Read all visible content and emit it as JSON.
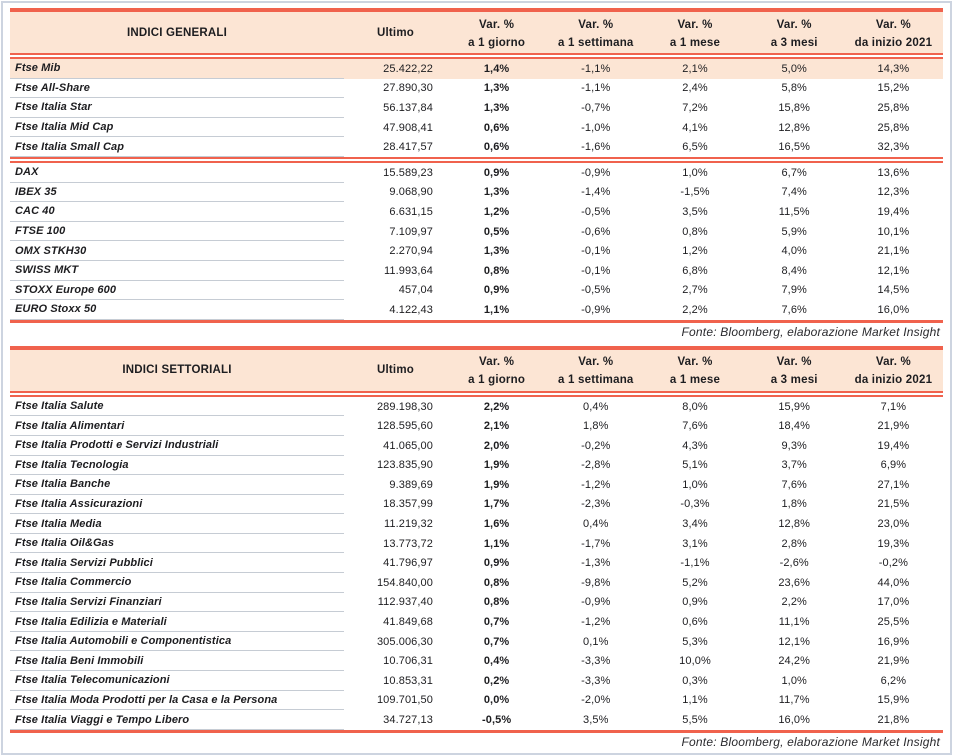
{
  "colors": {
    "accent": "#f0624d",
    "header_bg": "#fce5d4",
    "highlight_bg": "#fce5d4",
    "outer_border": "#cdd4e0",
    "row_line": "#c6ccd4",
    "text": "#1d1d20"
  },
  "columns": {
    "ultimo": "Ultimo",
    "var_label": "Var. %",
    "periods": [
      "a 1 giorno",
      "a 1 settimana",
      "a 1 mese",
      "a 3 mesi",
      "da inizio 2021"
    ]
  },
  "tables": [
    {
      "title": "INDICI GENERALI",
      "footer": "Fonte: Bloomberg, elaborazione Market Insight",
      "rows": [
        {
          "name": "Ftse Mib",
          "values": [
            "25.422,22",
            "1,4%",
            "-1,1%",
            "2,1%",
            "5,0%",
            "14,3%"
          ],
          "highlight": true
        },
        {
          "name": "Ftse All-Share",
          "values": [
            "27.890,30",
            "1,3%",
            "-1,1%",
            "2,4%",
            "5,8%",
            "15,2%"
          ]
        },
        {
          "name": "Ftse Italia Star",
          "values": [
            "56.137,84",
            "1,3%",
            "-0,7%",
            "7,2%",
            "15,8%",
            "25,8%"
          ]
        },
        {
          "name": "Ftse Italia Mid Cap",
          "values": [
            "47.908,41",
            "0,6%",
            "-1,0%",
            "4,1%",
            "12,8%",
            "25,8%"
          ]
        },
        {
          "name": "Ftse Italia Small Cap",
          "values": [
            "28.417,57",
            "0,6%",
            "-1,6%",
            "6,5%",
            "16,5%",
            "32,3%"
          ],
          "section_break": true
        },
        {
          "name": "DAX",
          "values": [
            "15.589,23",
            "0,9%",
            "-0,9%",
            "1,0%",
            "6,7%",
            "13,6%"
          ]
        },
        {
          "name": "IBEX 35",
          "values": [
            "9.068,90",
            "1,3%",
            "-1,4%",
            "-1,5%",
            "7,4%",
            "12,3%"
          ]
        },
        {
          "name": "CAC 40",
          "values": [
            "6.631,15",
            "1,2%",
            "-0,5%",
            "3,5%",
            "11,5%",
            "19,4%"
          ]
        },
        {
          "name": "FTSE 100",
          "values": [
            "7.109,97",
            "0,5%",
            "-0,6%",
            "0,8%",
            "5,9%",
            "10,1%"
          ]
        },
        {
          "name": "OMX STKH30",
          "values": [
            "2.270,94",
            "1,3%",
            "-0,1%",
            "1,2%",
            "4,0%",
            "21,1%"
          ]
        },
        {
          "name": "SWISS MKT",
          "values": [
            "11.993,64",
            "0,8%",
            "-0,1%",
            "6,8%",
            "8,4%",
            "12,1%"
          ]
        },
        {
          "name": "STOXX Europe 600",
          "values": [
            "457,04",
            "0,9%",
            "-0,5%",
            "2,7%",
            "7,9%",
            "14,5%"
          ]
        },
        {
          "name": "EURO Stoxx 50",
          "values": [
            "4.122,43",
            "1,1%",
            "-0,9%",
            "2,2%",
            "7,6%",
            "16,0%"
          ]
        }
      ]
    },
    {
      "title": "INDICI SETTORIALI",
      "footer": "Fonte: Bloomberg, elaborazione Market Insight",
      "rows": [
        {
          "name": "Ftse Italia Salute",
          "values": [
            "289.198,30",
            "2,2%",
            "0,4%",
            "8,0%",
            "15,9%",
            "7,1%"
          ]
        },
        {
          "name": "Ftse Italia Alimentari",
          "values": [
            "128.595,60",
            "2,1%",
            "1,8%",
            "7,6%",
            "18,4%",
            "21,9%"
          ]
        },
        {
          "name": "Ftse Italia Prodotti e Servizi Industriali",
          "values": [
            "41.065,00",
            "2,0%",
            "-0,2%",
            "4,3%",
            "9,3%",
            "19,4%"
          ]
        },
        {
          "name": "Ftse Italia Tecnologia",
          "values": [
            "123.835,90",
            "1,9%",
            "-2,8%",
            "5,1%",
            "3,7%",
            "6,9%"
          ]
        },
        {
          "name": "Ftse Italia Banche",
          "values": [
            "9.389,69",
            "1,9%",
            "-1,2%",
            "1,0%",
            "7,6%",
            "27,1%"
          ]
        },
        {
          "name": "Ftse Italia Assicurazioni",
          "values": [
            "18.357,99",
            "1,7%",
            "-2,3%",
            "-0,3%",
            "1,8%",
            "21,5%"
          ]
        },
        {
          "name": "Ftse Italia Media",
          "values": [
            "11.219,32",
            "1,6%",
            "0,4%",
            "3,4%",
            "12,8%",
            "23,0%"
          ]
        },
        {
          "name": "Ftse Italia Oil&Gas",
          "values": [
            "13.773,72",
            "1,1%",
            "-1,7%",
            "3,1%",
            "2,8%",
            "19,3%"
          ]
        },
        {
          "name": "Ftse Italia Servizi Pubblici",
          "values": [
            "41.796,97",
            "0,9%",
            "-1,3%",
            "-1,1%",
            "-2,6%",
            "-0,2%"
          ]
        },
        {
          "name": "Ftse Italia Commercio",
          "values": [
            "154.840,00",
            "0,8%",
            "-9,8%",
            "5,2%",
            "23,6%",
            "44,0%"
          ]
        },
        {
          "name": "Ftse Italia Servizi Finanziari",
          "values": [
            "112.937,40",
            "0,8%",
            "-0,9%",
            "0,9%",
            "2,2%",
            "17,0%"
          ]
        },
        {
          "name": "Ftse Italia Edilizia e Materiali",
          "values": [
            "41.849,68",
            "0,7%",
            "-1,2%",
            "0,6%",
            "11,1%",
            "25,5%"
          ]
        },
        {
          "name": "Ftse Italia Automobili e Componentistica",
          "values": [
            "305.006,30",
            "0,7%",
            "0,1%",
            "5,3%",
            "12,1%",
            "16,9%"
          ]
        },
        {
          "name": "Ftse Italia Beni Immobili",
          "values": [
            "10.706,31",
            "0,4%",
            "-3,3%",
            "10,0%",
            "24,2%",
            "21,9%"
          ]
        },
        {
          "name": "Ftse Italia Telecomunicazioni",
          "values": [
            "10.853,31",
            "0,2%",
            "-3,3%",
            "0,3%",
            "1,0%",
            "6,2%"
          ]
        },
        {
          "name": "Ftse Italia Moda Prodotti per la Casa e la Persona",
          "values": [
            "109.701,50",
            "0,0%",
            "-2,0%",
            "1,1%",
            "11,7%",
            "15,9%"
          ]
        },
        {
          "name": "Ftse Italia Viaggi e Tempo Libero",
          "values": [
            "34.727,13",
            "-0,5%",
            "3,5%",
            "5,5%",
            "16,0%",
            "21,8%"
          ]
        }
      ]
    }
  ]
}
